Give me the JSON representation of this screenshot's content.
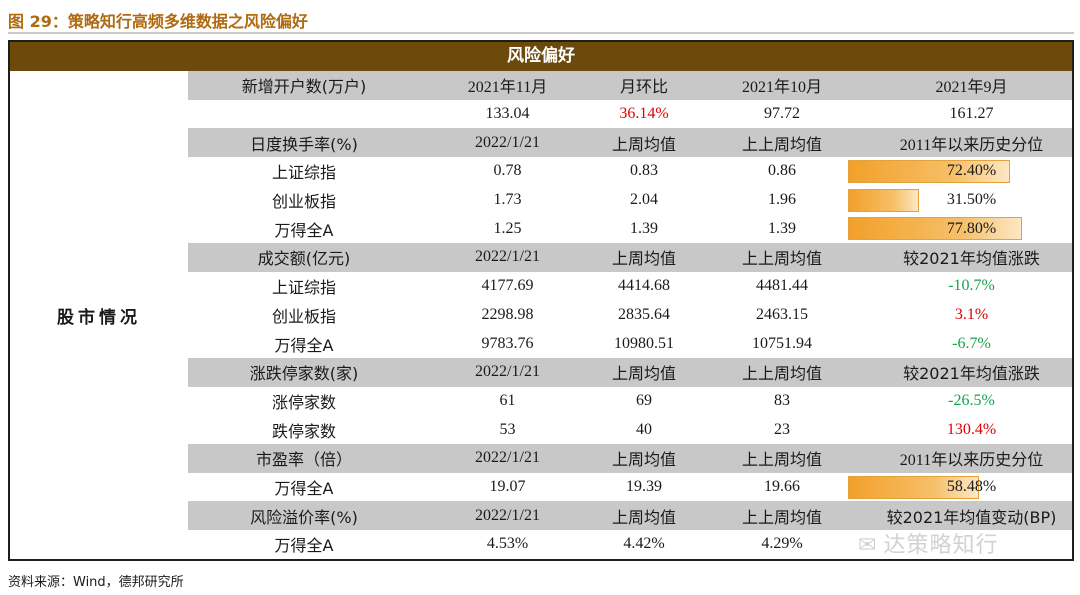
{
  "figure_title": "图 29：策略知行高频多维数据之风险偏好",
  "banner": "风险偏好",
  "sidebar_label": "股市情况",
  "sections": {
    "accounts": {
      "header": [
        "新增开户数(万户)",
        "2021年11月",
        "月环比",
        "2021年10月",
        "2021年9月"
      ],
      "row": [
        "",
        "133.04",
        "36.14%",
        "97.72",
        "161.27"
      ]
    },
    "turnover": {
      "header": [
        "日度换手率(%)",
        "2022/1/21",
        "上周均值",
        "上上周均值",
        "2011年以来历史分位"
      ],
      "rows": [
        {
          "name": "上证综指",
          "v1": "0.78",
          "v2": "0.83",
          "v3": "0.86",
          "pct": "72.40%",
          "pct_frac": 0.724
        },
        {
          "name": "创业板指",
          "v1": "1.73",
          "v2": "2.04",
          "v3": "1.96",
          "pct": "31.50%",
          "pct_frac": 0.315
        },
        {
          "name": "万得全A",
          "v1": "1.25",
          "v2": "1.39",
          "v3": "1.39",
          "pct": "77.80%",
          "pct_frac": 0.778
        }
      ]
    },
    "volume": {
      "header": [
        "成交额(亿元)",
        "2022/1/21",
        "上周均值",
        "上上周均值",
        "较2021年均值涨跌"
      ],
      "rows": [
        {
          "name": "上证综指",
          "v1": "4177.69",
          "v2": "4414.68",
          "v3": "4481.44",
          "chg": "-10.7%",
          "color": "green"
        },
        {
          "name": "创业板指",
          "v1": "2298.98",
          "v2": "2835.64",
          "v3": "2463.15",
          "chg": "3.1%",
          "color": "red"
        },
        {
          "name": "万得全A",
          "v1": "9783.76",
          "v2": "10980.51",
          "v3": "10751.94",
          "chg": "-6.7%",
          "color": "green"
        }
      ]
    },
    "limits": {
      "header": [
        "涨跌停家数(家)",
        "2022/1/21",
        "上周均值",
        "上上周均值",
        "较2021年均值涨跌"
      ],
      "rows": [
        {
          "name": "涨停家数",
          "v1": "61",
          "v2": "69",
          "v3": "83",
          "chg": "-26.5%",
          "color": "green"
        },
        {
          "name": "跌停家数",
          "v1": "53",
          "v2": "40",
          "v3": "23",
          "chg": "130.4%",
          "color": "red"
        }
      ]
    },
    "pe": {
      "header": [
        "市盈率（倍）",
        "2022/1/21",
        "上周均值",
        "上上周均值",
        "2011年以来历史分位"
      ],
      "rows": [
        {
          "name": "万得全A",
          "v1": "19.07",
          "v2": "19.39",
          "v3": "19.66",
          "pct": "58.48%",
          "pct_frac": 0.5848
        }
      ]
    },
    "erp": {
      "header": [
        "风险溢价率(%)",
        "2022/1/21",
        "上周均值",
        "上上周均值",
        "较2021年均值变动(BP)"
      ],
      "rows": [
        {
          "name": "万得全A",
          "v1": "4.53%",
          "v2": "4.42%",
          "v3": "4.29%",
          "chg": ""
        }
      ]
    }
  },
  "colors": {
    "banner": "#6b4a0c",
    "header_bg": "#c8c8c8",
    "bar": "#f2a02a",
    "up": "#e00000",
    "down": "#16a34a"
  },
  "source": "资料来源：Wind，德邦研究所",
  "watermark": "达策略知行"
}
